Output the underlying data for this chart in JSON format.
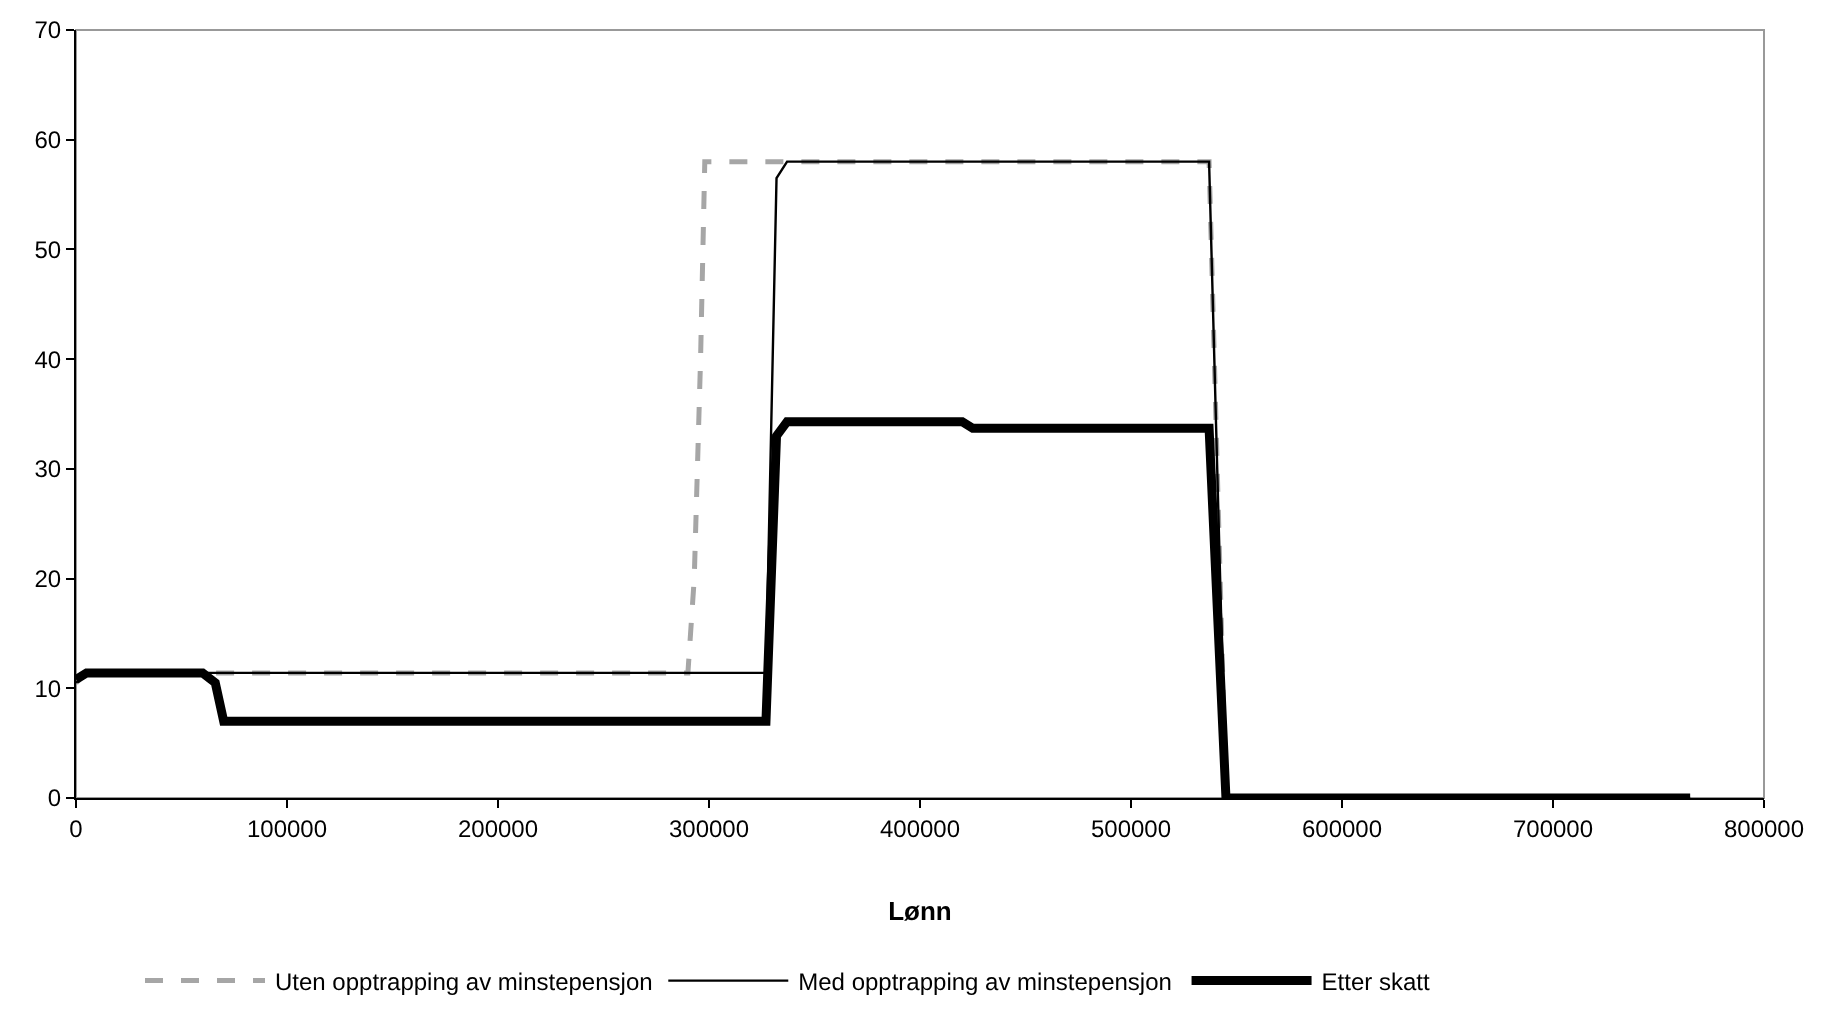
{
  "chart_data": {
    "type": "line",
    "xlabel": "Lønn",
    "xlim": [
      0,
      800000
    ],
    "xticks": [
      0,
      100000,
      200000,
      300000,
      400000,
      500000,
      600000,
      700000,
      800000
    ],
    "ylim": [
      0,
      70
    ],
    "yticks": [
      0,
      10,
      20,
      30,
      40,
      50,
      60,
      70
    ],
    "grid": false,
    "legend": "bottom",
    "marker": "none",
    "series": [
      {
        "name": "Uten opptrapping av minstepensjon",
        "color": "#a6a6a6",
        "line_style": "dashed",
        "x": [
          0,
          5000,
          290000,
          293000,
          296000,
          298000,
          537000,
          545000,
          765000
        ],
        "values": [
          10.5,
          11.4,
          11.4,
          20,
          40,
          58,
          58,
          0,
          0
        ]
      },
      {
        "name": "Med opptrapping av minstepensjon",
        "color": "#000000",
        "line_style": "solid",
        "x": [
          0,
          5000,
          327000,
          332000,
          337000,
          537000,
          545000,
          765000
        ],
        "values": [
          10.5,
          11.4,
          11.4,
          56.5,
          58,
          58,
          0,
          0
        ]
      },
      {
        "name": "Etter skatt",
        "color": "#000000",
        "line_style": "solid",
        "x": [
          0,
          5000,
          60000,
          66000,
          70000,
          327000,
          332000,
          337000,
          420000,
          425000,
          537000,
          545000,
          765000
        ],
        "values": [
          10.8,
          11.4,
          11.4,
          10.5,
          7,
          7,
          33,
          34.3,
          34.3,
          33.7,
          33.7,
          0,
          0
        ]
      }
    ]
  }
}
